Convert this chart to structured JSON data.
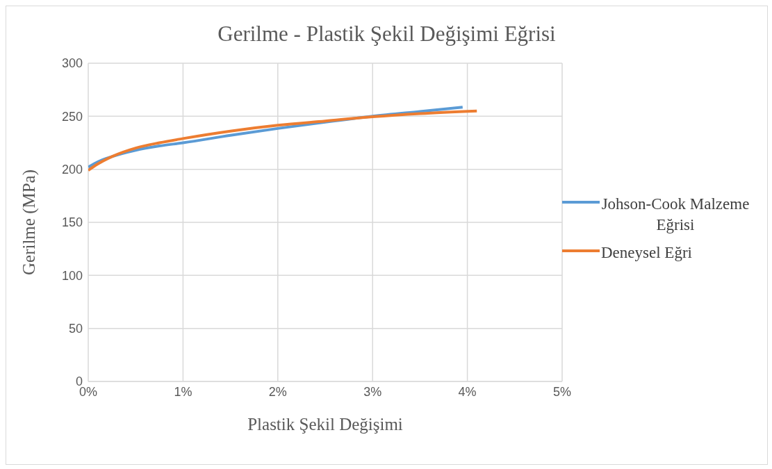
{
  "chart_data": {
    "type": "line",
    "title": "Gerilme - Plastik Şekil Değişimi Eğrisi",
    "xlabel": "Plastik Şekil Değişimi",
    "ylabel": "Gerilme (MPa)",
    "xlim": [
      0,
      0.05
    ],
    "xticks": [
      {
        "value": 0,
        "label": "0%"
      },
      {
        "value": 0.01,
        "label": "1%"
      },
      {
        "value": 0.02,
        "label": "2%"
      },
      {
        "value": 0.03,
        "label": "3%"
      },
      {
        "value": 0.04,
        "label": "4%"
      },
      {
        "value": 0.05,
        "label": "5%"
      }
    ],
    "ylim": [
      0,
      300
    ],
    "yticks": [
      0,
      50,
      100,
      150,
      200,
      250,
      300
    ],
    "grid": true,
    "legend": "right",
    "marker": "none",
    "line_style": "solid",
    "series": [
      {
        "name": "Johson-Cook Malzeme Eğrisi",
        "color": "#5b9bd5",
        "x": [
          0,
          0.001,
          0.0025,
          0.005,
          0.0075,
          0.01,
          0.015,
          0.02,
          0.025,
          0.03,
          0.035,
          0.0395
        ],
        "values": [
          202,
          207,
          212,
          218,
          222,
          225,
          232,
          238.5,
          244.5,
          250,
          254.5,
          258.5
        ]
      },
      {
        "name": "Deneysel Eğri",
        "color": "#ed7d31",
        "x": [
          0,
          0.001,
          0.0025,
          0.005,
          0.0075,
          0.01,
          0.015,
          0.02,
          0.025,
          0.03,
          0.035,
          0.041
        ],
        "values": [
          199,
          205,
          212,
          220,
          225,
          229,
          236,
          241.5,
          245.5,
          249.5,
          252.5,
          255
        ]
      }
    ]
  }
}
